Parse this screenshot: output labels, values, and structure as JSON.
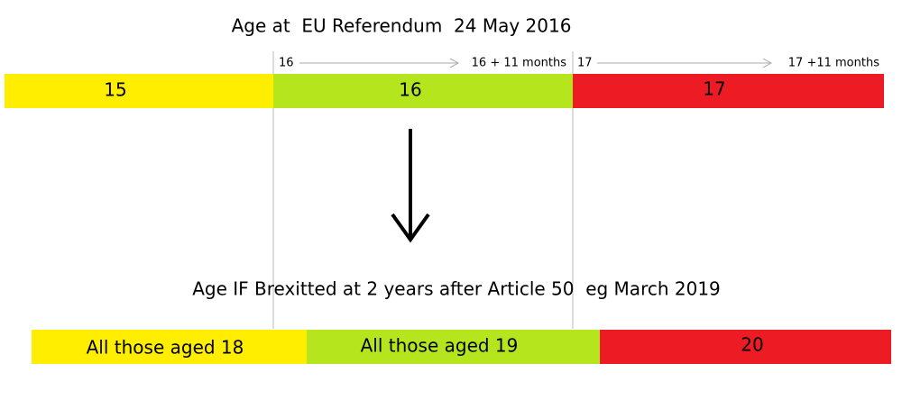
{
  "top_title": "Age at  EU Referendum  24 May 2016",
  "top_bar": {
    "segments": [
      {
        "label": "15"
      },
      {
        "label": "16"
      },
      {
        "label": "17"
      }
    ]
  },
  "ranges": [
    {
      "start": "16",
      "end": "16 + 11 months"
    },
    {
      "start": "17",
      "end": "17 +11 months"
    }
  ],
  "bottom_title": "Age IF Brexitted at 2 years after Article 50  eg March 2019",
  "bottom_bar": {
    "segments": [
      {
        "label": "All those aged 18"
      },
      {
        "label": "All those aged 19"
      },
      {
        "label": "20"
      }
    ]
  }
}
